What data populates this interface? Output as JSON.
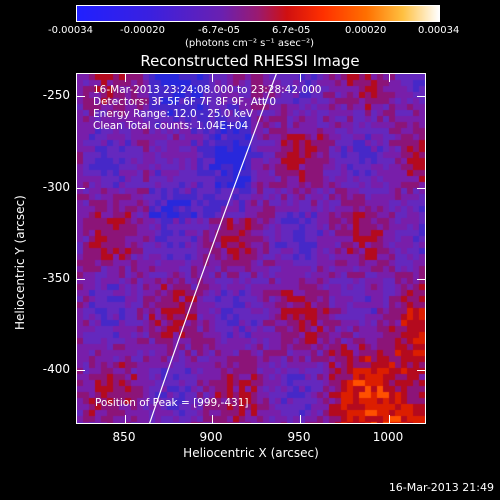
{
  "colorbar": {
    "ticks": [
      "-0.00034",
      "-0.00020",
      "-6.7e-05",
      "6.7e-05",
      "0.00020",
      "0.00034"
    ],
    "units": "(photons cm⁻² s⁻¹ asec⁻²)",
    "colors": [
      "#2020ff",
      "#6020c0",
      "#c01010",
      "#ff4000",
      "#ffa000",
      "#ffffff"
    ]
  },
  "title": "Reconstructed RHESSI Image",
  "annotations": {
    "time": "16-Mar-2013 23:24:08.000 to 23:28:42.000",
    "detectors": "Detectors: 3F 5F 6F 7F 8F 9F, Att 0",
    "energy": "Energy Range: 12.0 - 25.0 keV",
    "clean": "Clean     Total counts: 1.04E+04",
    "peak": "Position of Peak = [999,-431]"
  },
  "axes": {
    "xlabel": "Heliocentric X (arcsec)",
    "ylabel": "Heliocentric Y (arcsec)",
    "xticks": [
      "850",
      "900",
      "950",
      "1000"
    ],
    "yticks": [
      "-250",
      "-300",
      "-350",
      "-400"
    ],
    "xrange": [
      824,
      1064
    ],
    "yrange": [
      -431,
      -239
    ]
  },
  "footer": "16-Mar-2013 21:49"
}
